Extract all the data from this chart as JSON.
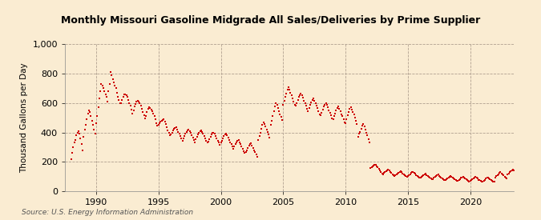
{
  "title": "Monthly Missouri Gasoline Midgrade All Sales/Deliveries by Prime Supplier",
  "ylabel": "Thousand Gallons per Day",
  "source": "Source: U.S. Energy Information Administration",
  "background_color": "#faecd2",
  "plot_bg_color": "#faecd2",
  "dot_color": "#cc0000",
  "ylim": [
    0,
    1000
  ],
  "yticks": [
    0,
    200,
    400,
    600,
    800,
    1000
  ],
  "start_year": 1988,
  "end_year": 2023,
  "xticks": [
    1990,
    1995,
    2000,
    2005,
    2010,
    2015,
    2020
  ],
  "data": [
    220,
    260,
    300,
    330,
    350,
    380,
    400,
    410,
    390,
    360,
    320,
    280,
    370,
    420,
    450,
    490,
    530,
    550,
    540,
    510,
    480,
    450,
    420,
    390,
    460,
    510,
    570,
    630,
    680,
    730,
    720,
    700,
    680,
    660,
    640,
    610,
    680,
    730,
    810,
    790,
    760,
    740,
    720,
    700,
    670,
    640,
    620,
    600,
    600,
    620,
    640,
    660,
    660,
    650,
    640,
    620,
    600,
    580,
    555,
    530,
    550,
    575,
    595,
    610,
    615,
    610,
    600,
    580,
    560,
    540,
    515,
    495,
    510,
    540,
    560,
    570,
    565,
    555,
    545,
    530,
    510,
    490,
    465,
    445,
    450,
    465,
    475,
    480,
    485,
    490,
    475,
    455,
    435,
    415,
    395,
    380,
    385,
    400,
    415,
    425,
    430,
    435,
    420,
    405,
    390,
    375,
    360,
    345,
    360,
    375,
    390,
    405,
    415,
    420,
    410,
    395,
    380,
    365,
    350,
    335,
    355,
    370,
    385,
    400,
    410,
    415,
    405,
    390,
    375,
    360,
    345,
    330,
    340,
    355,
    370,
    385,
    395,
    400,
    390,
    375,
    360,
    345,
    330,
    315,
    330,
    345,
    360,
    375,
    385,
    390,
    380,
    365,
    350,
    335,
    320,
    305,
    290,
    305,
    320,
    335,
    345,
    350,
    335,
    320,
    305,
    290,
    275,
    260,
    265,
    280,
    295,
    310,
    320,
    325,
    310,
    295,
    280,
    265,
    250,
    235,
    350,
    375,
    400,
    425,
    450,
    470,
    455,
    440,
    420,
    405,
    385,
    365,
    450,
    480,
    510,
    545,
    575,
    600,
    585,
    565,
    545,
    525,
    505,
    485,
    590,
    615,
    640,
    665,
    690,
    705,
    690,
    670,
    650,
    630,
    610,
    590,
    580,
    600,
    620,
    640,
    655,
    665,
    650,
    635,
    615,
    600,
    580,
    560,
    545,
    565,
    585,
    605,
    620,
    630,
    615,
    600,
    580,
    565,
    545,
    525,
    515,
    535,
    555,
    575,
    590,
    600,
    585,
    570,
    550,
    535,
    515,
    495,
    490,
    510,
    530,
    550,
    565,
    575,
    560,
    545,
    525,
    510,
    490,
    470,
    465,
    490,
    515,
    540,
    560,
    570,
    555,
    540,
    520,
    500,
    480,
    455,
    370,
    390,
    405,
    425,
    445,
    455,
    440,
    420,
    400,
    380,
    355,
    330,
    160,
    165,
    170,
    175,
    178,
    180,
    172,
    163,
    152,
    142,
    132,
    122,
    118,
    125,
    132,
    138,
    143,
    147,
    140,
    132,
    124,
    116,
    109,
    103,
    108,
    115,
    122,
    128,
    133,
    137,
    130,
    123,
    116,
    109,
    103,
    98,
    105,
    112,
    118,
    124,
    129,
    133,
    126,
    119,
    112,
    106,
    100,
    95,
    92,
    98,
    105,
    110,
    115,
    119,
    112,
    105,
    98,
    92,
    87,
    82,
    85,
    91,
    97,
    103,
    108,
    113,
    106,
    99,
    93,
    87,
    82,
    77,
    78,
    84,
    90,
    96,
    101,
    106,
    99,
    93,
    87,
    81,
    76,
    71,
    73,
    79,
    85,
    91,
    96,
    101,
    95,
    89,
    83,
    78,
    73,
    68,
    70,
    76,
    82,
    88,
    93,
    98,
    92,
    86,
    80,
    75,
    70,
    65,
    68,
    74,
    80,
    86,
    91,
    96,
    90,
    84,
    79,
    74,
    69,
    64,
    95,
    103,
    111,
    118,
    124,
    129,
    122,
    115,
    108,
    101,
    95,
    89,
    115,
    123,
    131,
    138,
    144,
    149,
    142,
    135,
    128,
    121,
    114,
    108
  ]
}
